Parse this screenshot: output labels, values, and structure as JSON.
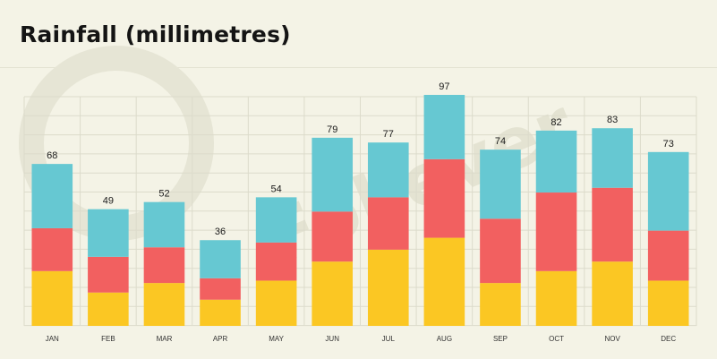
{
  "title": "Rainfall (millimetres)",
  "watermark": "Follever",
  "chart_data": {
    "type": "bar",
    "stacked": true,
    "title": "Rainfall (millimetres)",
    "xlabel": "",
    "ylabel": "",
    "ylim": [
      0,
      110
    ],
    "grid": true,
    "legend": "none",
    "categories": [
      "JAN",
      "FEB",
      "MAR",
      "APR",
      "MAY",
      "JUN",
      "JUL",
      "AUG",
      "SEP",
      "OCT",
      "NOV",
      "DEC"
    ],
    "totals": [
      68,
      49,
      52,
      36,
      54,
      79,
      77,
      97,
      74,
      82,
      83,
      73
    ],
    "series": [
      {
        "color": "#fbc723",
        "values": [
          23,
          14,
          18,
          11,
          19,
          27,
          32,
          37,
          18,
          23,
          27,
          19
        ]
      },
      {
        "color": "#f26060",
        "values": [
          18,
          15,
          15,
          9,
          16,
          21,
          22,
          33,
          27,
          33,
          31,
          21
        ]
      },
      {
        "color": "#66c8d2",
        "values": [
          27,
          20,
          19,
          16,
          19,
          31,
          23,
          27,
          29,
          26,
          25,
          33
        ]
      }
    ]
  }
}
